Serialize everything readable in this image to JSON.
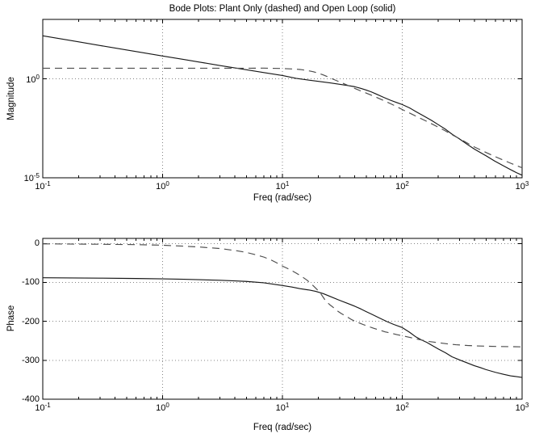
{
  "figure": {
    "title": "Bode Plots: Plant Only (dashed) and Open Loop (solid)",
    "background": "#ffffff",
    "axis_color": "#000000",
    "grid_color": "#848484",
    "solid_color": "#161616",
    "dashed_color": "#4d4d4d"
  },
  "chart_data": [
    {
      "type": "line",
      "id": "magnitude-plot",
      "xlabel": "Freq (rad/sec)",
      "ylabel": "Magnitude",
      "xscale": "log",
      "yscale": "log",
      "xlim": [
        0.1,
        1000
      ],
      "ylim": [
        1e-05,
        1000
      ],
      "grid": true,
      "legend": "none",
      "xticks": [
        {
          "m": "10",
          "e": "-1"
        },
        {
          "m": "10",
          "e": "0"
        },
        {
          "m": "10",
          "e": "1"
        },
        {
          "m": "10",
          "e": "2"
        },
        {
          "m": "10",
          "e": "3"
        }
      ],
      "xtick_values": [
        0.1,
        1,
        10,
        100,
        1000
      ],
      "yticks": [
        {
          "m": "10",
          "e": "0"
        },
        {
          "m": "10",
          "e": "-5"
        }
      ],
      "ytick_values": [
        1,
        1e-05
      ],
      "grid_x": [
        1,
        10,
        100
      ],
      "grid_y": [
        1
      ],
      "series": [
        {
          "name": "Open Loop (solid)",
          "style": "solid",
          "points": [
            [
              0.1,
              148
            ],
            [
              0.15,
              98
            ],
            [
              0.2,
              73
            ],
            [
              0.3,
              48
            ],
            [
              0.5,
              28.5
            ],
            [
              0.7,
              20.3
            ],
            [
              1,
              14.2
            ],
            [
              1.5,
              9.5
            ],
            [
              2,
              7.1
            ],
            [
              3,
              4.7
            ],
            [
              5,
              2.85
            ],
            [
              7,
              2.05
            ],
            [
              10,
              1.46
            ],
            [
              13,
              1.05
            ],
            [
              16,
              0.88
            ],
            [
              20,
              0.74
            ],
            [
              25,
              0.62
            ],
            [
              30,
              0.53
            ],
            [
              35,
              0.46
            ],
            [
              40,
              0.4
            ],
            [
              45,
              0.33
            ],
            [
              50,
              0.27
            ],
            [
              55,
              0.22
            ],
            [
              60,
              0.175
            ],
            [
              70,
              0.115
            ],
            [
              80,
              0.082
            ],
            [
              90,
              0.063
            ],
            [
              100,
              0.05
            ],
            [
              115,
              0.034
            ],
            [
              130,
              0.022
            ],
            [
              150,
              0.0135
            ],
            [
              175,
              0.008
            ],
            [
              200,
              0.0048
            ],
            [
              230,
              0.0028
            ],
            [
              260,
              0.0016
            ],
            [
              300,
              0.00092
            ],
            [
              350,
              0.00048
            ],
            [
              400,
              0.00028
            ],
            [
              435,
              0.00021
            ],
            [
              500,
              0.00013
            ],
            [
              590,
              7e-05
            ],
            [
              700,
              4e-05
            ],
            [
              800,
              2.6e-05
            ],
            [
              900,
              1.8e-05
            ],
            [
              1000,
              1.35e-05
            ]
          ]
        },
        {
          "name": "Plant Only (dashed)",
          "style": "dashed",
          "points": [
            [
              0.1,
              3.4
            ],
            [
              0.5,
              3.4
            ],
            [
              1,
              3.4
            ],
            [
              2,
              3.4
            ],
            [
              3,
              3.4
            ],
            [
              5,
              3.42
            ],
            [
              7,
              3.45
            ],
            [
              10,
              3.3
            ],
            [
              12,
              3.15
            ],
            [
              14,
              2.95
            ],
            [
              16,
              2.65
            ],
            [
              18,
              2.3
            ],
            [
              20,
              1.9
            ],
            [
              22,
              1.55
            ],
            [
              24,
              1.25
            ],
            [
              26,
              1.0
            ],
            [
              28,
              0.83
            ],
            [
              30,
              0.7
            ],
            [
              35,
              0.47
            ],
            [
              40,
              0.33
            ],
            [
              45,
              0.245
            ],
            [
              50,
              0.19
            ],
            [
              55,
              0.15
            ],
            [
              60,
              0.12
            ],
            [
              70,
              0.08
            ],
            [
              80,
              0.055
            ],
            [
              90,
              0.039
            ],
            [
              100,
              0.028
            ],
            [
              120,
              0.0165
            ],
            [
              140,
              0.0105
            ],
            [
              170,
              0.0059
            ],
            [
              200,
              0.0036
            ],
            [
              230,
              0.0023
            ],
            [
              260,
              0.0015
            ],
            [
              300,
              0.00095
            ],
            [
              350,
              0.00056
            ],
            [
              400,
              0.00036
            ],
            [
              500,
              0.00019
            ],
            [
              600,
              0.000115
            ],
            [
              700,
              7.7e-05
            ],
            [
              800,
              5.5e-05
            ],
            [
              900,
              4.1e-05
            ],
            [
              1000,
              3.2e-05
            ]
          ]
        }
      ]
    },
    {
      "type": "line",
      "id": "phase-plot",
      "xlabel": "Freq (rad/sec)",
      "ylabel": "Phase",
      "xscale": "log",
      "yscale": "linear",
      "xlim": [
        0.1,
        1000
      ],
      "ylim": [
        -400,
        13
      ],
      "grid": true,
      "legend": "none",
      "xticks": [
        {
          "m": "10",
          "e": "-1"
        },
        {
          "m": "10",
          "e": "0"
        },
        {
          "m": "10",
          "e": "1"
        },
        {
          "m": "10",
          "e": "2"
        },
        {
          "m": "10",
          "e": "3"
        }
      ],
      "xtick_values": [
        0.1,
        1,
        10,
        100,
        1000
      ],
      "yticks": [
        "0",
        "-100",
        "-200",
        "-300",
        "-400"
      ],
      "ytick_values": [
        0,
        -100,
        -200,
        -300,
        -400
      ],
      "grid_x": [
        1,
        10,
        100
      ],
      "grid_y": [
        0,
        -100,
        -200,
        -300
      ],
      "series": [
        {
          "name": "Open Loop (solid)",
          "style": "solid",
          "points": [
            [
              0.1,
              -88
            ],
            [
              0.3,
              -89
            ],
            [
              0.6,
              -90
            ],
            [
              1,
              -91
            ],
            [
              1.5,
              -92
            ],
            [
              2,
              -93
            ],
            [
              3,
              -94.5
            ],
            [
              4,
              -96
            ],
            [
              5,
              -97.5
            ],
            [
              7,
              -101
            ],
            [
              10,
              -108
            ],
            [
              12,
              -112
            ],
            [
              14,
              -116
            ],
            [
              17,
              -120
            ],
            [
              19,
              -123
            ],
            [
              22,
              -129
            ],
            [
              25,
              -136
            ],
            [
              30,
              -146
            ],
            [
              35,
              -154
            ],
            [
              40,
              -161
            ],
            [
              45,
              -168
            ],
            [
              50,
              -175
            ],
            [
              55,
              -181
            ],
            [
              65,
              -192
            ],
            [
              75,
              -201
            ],
            [
              85,
              -208
            ],
            [
              100,
              -216
            ],
            [
              115,
              -228
            ],
            [
              130,
              -240
            ],
            [
              145,
              -248
            ],
            [
              160,
              -254
            ],
            [
              180,
              -263
            ],
            [
              200,
              -271
            ],
            [
              230,
              -281
            ],
            [
              260,
              -291
            ],
            [
              300,
              -299
            ],
            [
              350,
              -307
            ],
            [
              400,
              -314
            ],
            [
              450,
              -319
            ],
            [
              500,
              -324
            ],
            [
              600,
              -331
            ],
            [
              700,
              -336
            ],
            [
              800,
              -340
            ],
            [
              900,
              -342
            ],
            [
              1000,
              -344
            ]
          ]
        },
        {
          "name": "Plant Only (dashed)",
          "style": "dashed",
          "points": [
            [
              0.1,
              -1
            ],
            [
              0.3,
              -2
            ],
            [
              0.6,
              -3
            ],
            [
              1,
              -4.5
            ],
            [
              1.5,
              -7
            ],
            [
              2,
              -9
            ],
            [
              3,
              -13
            ],
            [
              4,
              -18
            ],
            [
              5,
              -23
            ],
            [
              6,
              -29
            ],
            [
              7,
              -35
            ],
            [
              8,
              -42
            ],
            [
              9,
              -50
            ],
            [
              10,
              -58
            ],
            [
              11,
              -64
            ],
            [
              12,
              -70
            ],
            [
              13,
              -76
            ],
            [
              14,
              -82
            ],
            [
              15,
              -88
            ],
            [
              16,
              -94
            ],
            [
              17,
              -101
            ],
            [
              18,
              -108
            ],
            [
              19,
              -115
            ],
            [
              20,
              -122
            ],
            [
              21,
              -130
            ],
            [
              22,
              -139
            ],
            [
              23,
              -148
            ],
            [
              25,
              -158
            ],
            [
              27,
              -166
            ],
            [
              29,
              -174
            ],
            [
              31,
              -180
            ],
            [
              34,
              -187
            ],
            [
              38,
              -196
            ],
            [
              42,
              -202
            ],
            [
              47,
              -208
            ],
            [
              52,
              -213
            ],
            [
              58,
              -218
            ],
            [
              64,
              -222
            ],
            [
              72,
              -227
            ],
            [
              80,
              -230
            ],
            [
              90,
              -234
            ],
            [
              100,
              -237
            ],
            [
              115,
              -241
            ],
            [
              130,
              -245
            ],
            [
              150,
              -249
            ],
            [
              170,
              -252
            ],
            [
              200,
              -255
            ],
            [
              240,
              -258
            ],
            [
              280,
              -260
            ],
            [
              350,
              -262
            ],
            [
              450,
              -263.5
            ],
            [
              600,
              -264.5
            ],
            [
              800,
              -265
            ],
            [
              1000,
              -265.5
            ]
          ]
        }
      ]
    }
  ]
}
